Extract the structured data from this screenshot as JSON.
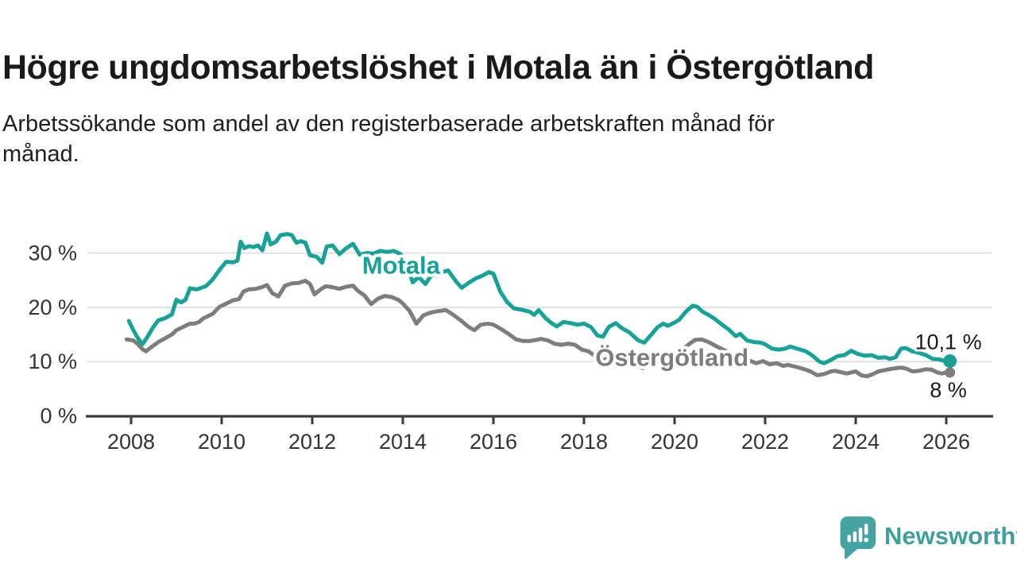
{
  "header": {
    "title": "Högre ungdomsarbetslöshet i Motala än i Östergötland",
    "subtitle_lines": [
      "Arbetssökande som andel av den registerbaserade arbetskraften månad för",
      "månad."
    ]
  },
  "branding": {
    "logo_text": "Newsworthy",
    "logo_color": "#3f9f9d",
    "logo_icon": "bar-chart-speech-bubble"
  },
  "chart_data": {
    "type": "line",
    "title": "Högre ungdomsarbetslöshet i Motala än i Östergötland",
    "subtitle": "Arbetssökande som andel av den registerbaserade arbetskraften månad för månad.",
    "unit": "%",
    "x_axis": {
      "ticks": [
        2008,
        2010,
        2012,
        2014,
        2016,
        2018,
        2020,
        2022,
        2024,
        2026
      ],
      "range": [
        2007.0,
        2027.0
      ]
    },
    "y_axis": {
      "ticks": [
        {
          "value": 0,
          "label": "0 %"
        },
        {
          "value": 10,
          "label": "10 %"
        },
        {
          "value": 20,
          "label": "20 %"
        },
        {
          "value": 30,
          "label": "30 %"
        }
      ],
      "range": [
        0,
        35
      ],
      "grid": true
    },
    "legend_position": "inline-labels",
    "style": {
      "grid_color": "#dcdcdc",
      "axis_color": "#3b3b3b",
      "axis_text_color": "#333333",
      "value_label_color": "#1a1a1a"
    },
    "series": [
      {
        "id": "ostergotland",
        "name": "Östergötland",
        "color": "#7d7d7d",
        "end_label": "8 %",
        "end_value": 8.0,
        "end_label_position": "below",
        "label_pos": {
          "t": 2018.25,
          "v": 10.8
        },
        "points": [
          [
            2007.9,
            14.1
          ],
          [
            2008.05,
            13.9
          ],
          [
            2008.15,
            13.2
          ],
          [
            2008.25,
            12.3
          ],
          [
            2008.33,
            11.9
          ],
          [
            2008.45,
            12.7
          ],
          [
            2008.6,
            13.6
          ],
          [
            2008.75,
            14.3
          ],
          [
            2008.9,
            15.0
          ],
          [
            2009.0,
            15.8
          ],
          [
            2009.15,
            16.4
          ],
          [
            2009.3,
            17.0
          ],
          [
            2009.4,
            17.0
          ],
          [
            2009.5,
            17.3
          ],
          [
            2009.6,
            18.0
          ],
          [
            2009.8,
            18.8
          ],
          [
            2009.95,
            20.1
          ],
          [
            2010.1,
            20.7
          ],
          [
            2010.25,
            21.3
          ],
          [
            2010.38,
            21.5
          ],
          [
            2010.48,
            22.9
          ],
          [
            2010.6,
            23.3
          ],
          [
            2010.75,
            23.4
          ],
          [
            2010.88,
            23.7
          ],
          [
            2011.0,
            24.1
          ],
          [
            2011.12,
            22.6
          ],
          [
            2011.25,
            22.0
          ],
          [
            2011.4,
            24.0
          ],
          [
            2011.55,
            24.4
          ],
          [
            2011.7,
            24.5
          ],
          [
            2011.85,
            24.9
          ],
          [
            2011.95,
            24.3
          ],
          [
            2012.05,
            22.4
          ],
          [
            2012.2,
            23.4
          ],
          [
            2012.3,
            23.9
          ],
          [
            2012.45,
            23.7
          ],
          [
            2012.6,
            23.4
          ],
          [
            2012.75,
            23.8
          ],
          [
            2012.9,
            24.0
          ],
          [
            2013.0,
            23.1
          ],
          [
            2013.15,
            22.2
          ],
          [
            2013.3,
            20.6
          ],
          [
            2013.45,
            21.6
          ],
          [
            2013.6,
            22.1
          ],
          [
            2013.75,
            21.9
          ],
          [
            2013.9,
            21.4
          ],
          [
            2014.0,
            20.7
          ],
          [
            2014.15,
            19.3
          ],
          [
            2014.3,
            17.0
          ],
          [
            2014.45,
            18.5
          ],
          [
            2014.6,
            19.0
          ],
          [
            2014.78,
            19.3
          ],
          [
            2014.95,
            19.5
          ],
          [
            2015.1,
            18.7
          ],
          [
            2015.28,
            17.6
          ],
          [
            2015.45,
            16.4
          ],
          [
            2015.58,
            15.8
          ],
          [
            2015.72,
            16.8
          ],
          [
            2015.88,
            17.0
          ],
          [
            2016.0,
            16.8
          ],
          [
            2016.15,
            16.1
          ],
          [
            2016.3,
            15.3
          ],
          [
            2016.5,
            14.1
          ],
          [
            2016.65,
            13.8
          ],
          [
            2016.8,
            13.8
          ],
          [
            2016.95,
            14.0
          ],
          [
            2017.05,
            14.2
          ],
          [
            2017.2,
            13.9
          ],
          [
            2017.35,
            13.3
          ],
          [
            2017.5,
            13.1
          ],
          [
            2017.65,
            13.3
          ],
          [
            2017.8,
            13.1
          ],
          [
            2017.95,
            12.2
          ],
          [
            2018.1,
            11.9
          ],
          [
            2018.3,
            10.7
          ],
          [
            2018.45,
            10.3
          ],
          [
            2018.6,
            10.9
          ],
          [
            2018.8,
            11.2
          ],
          [
            2019.0,
            10.7
          ],
          [
            2019.15,
            9.4
          ],
          [
            2019.3,
            8.8
          ],
          [
            2019.5,
            10.2
          ],
          [
            2019.7,
            10.8
          ],
          [
            2019.9,
            11.0
          ],
          [
            2020.1,
            11.6
          ],
          [
            2020.3,
            13.1
          ],
          [
            2020.45,
            14.0
          ],
          [
            2020.6,
            14.1
          ],
          [
            2020.78,
            13.5
          ],
          [
            2020.95,
            12.7
          ],
          [
            2021.1,
            12.1
          ],
          [
            2021.3,
            11.4
          ],
          [
            2021.5,
            10.8
          ],
          [
            2021.65,
            10.2
          ],
          [
            2021.8,
            9.7
          ],
          [
            2021.95,
            10.1
          ],
          [
            2022.1,
            9.5
          ],
          [
            2022.25,
            9.7
          ],
          [
            2022.4,
            9.2
          ],
          [
            2022.5,
            9.4
          ],
          [
            2022.7,
            9.0
          ],
          [
            2022.9,
            8.5
          ],
          [
            2023.0,
            8.2
          ],
          [
            2023.15,
            7.5
          ],
          [
            2023.3,
            7.7
          ],
          [
            2023.45,
            8.2
          ],
          [
            2023.55,
            8.3
          ],
          [
            2023.7,
            8.0
          ],
          [
            2023.8,
            7.8
          ],
          [
            2023.9,
            8.0
          ],
          [
            2024.0,
            8.2
          ],
          [
            2024.12,
            7.5
          ],
          [
            2024.25,
            7.3
          ],
          [
            2024.38,
            7.7
          ],
          [
            2024.5,
            8.2
          ],
          [
            2024.62,
            8.4
          ],
          [
            2024.75,
            8.6
          ],
          [
            2024.9,
            8.8
          ],
          [
            2025.0,
            8.9
          ],
          [
            2025.12,
            8.7
          ],
          [
            2025.25,
            8.2
          ],
          [
            2025.4,
            8.3
          ],
          [
            2025.55,
            8.6
          ],
          [
            2025.68,
            8.5
          ],
          [
            2025.8,
            8.0
          ],
          [
            2025.9,
            7.8
          ],
          [
            2026.0,
            8.0
          ],
          [
            2026.08,
            8.0
          ]
        ]
      },
      {
        "id": "motala",
        "name": "Motala",
        "color": "#16a296",
        "end_label": "10,1 %",
        "end_value": 10.1,
        "end_label_position": "above",
        "label_pos": {
          "t": 2013.1,
          "v": 27.8
        },
        "points": [
          [
            2007.95,
            17.5
          ],
          [
            2008.05,
            15.8
          ],
          [
            2008.15,
            14.3
          ],
          [
            2008.25,
            13.2
          ],
          [
            2008.35,
            14.4
          ],
          [
            2008.5,
            16.5
          ],
          [
            2008.6,
            17.6
          ],
          [
            2008.75,
            18.0
          ],
          [
            2008.9,
            18.7
          ],
          [
            2009.0,
            21.4
          ],
          [
            2009.1,
            20.9
          ],
          [
            2009.2,
            21.4
          ],
          [
            2009.3,
            23.5
          ],
          [
            2009.45,
            23.3
          ],
          [
            2009.55,
            23.6
          ],
          [
            2009.65,
            23.9
          ],
          [
            2009.8,
            25.1
          ],
          [
            2009.9,
            26.3
          ],
          [
            2010.0,
            27.4
          ],
          [
            2010.1,
            28.4
          ],
          [
            2010.25,
            28.3
          ],
          [
            2010.35,
            28.6
          ],
          [
            2010.42,
            32.1
          ],
          [
            2010.5,
            30.9
          ],
          [
            2010.6,
            31.3
          ],
          [
            2010.7,
            31.1
          ],
          [
            2010.8,
            31.4
          ],
          [
            2010.9,
            30.5
          ],
          [
            2011.0,
            33.6
          ],
          [
            2011.08,
            31.6
          ],
          [
            2011.2,
            32.1
          ],
          [
            2011.3,
            33.3
          ],
          [
            2011.45,
            33.5
          ],
          [
            2011.55,
            33.3
          ],
          [
            2011.65,
            31.9
          ],
          [
            2011.75,
            32.2
          ],
          [
            2011.85,
            31.9
          ],
          [
            2011.95,
            29.6
          ],
          [
            2012.1,
            29.3
          ],
          [
            2012.22,
            28.2
          ],
          [
            2012.32,
            31.2
          ],
          [
            2012.45,
            31.4
          ],
          [
            2012.6,
            29.8
          ],
          [
            2012.75,
            30.9
          ],
          [
            2012.9,
            31.7
          ],
          [
            2013.05,
            29.7
          ],
          [
            2013.2,
            30.0
          ],
          [
            2013.35,
            29.9
          ],
          [
            2013.5,
            30.4
          ],
          [
            2013.65,
            30.2
          ],
          [
            2013.8,
            30.4
          ],
          [
            2013.95,
            29.8
          ],
          [
            2014.1,
            27.5
          ],
          [
            2014.22,
            24.6
          ],
          [
            2014.35,
            25.6
          ],
          [
            2014.5,
            24.3
          ],
          [
            2014.62,
            25.8
          ],
          [
            2014.8,
            26.3
          ],
          [
            2015.0,
            26.8
          ],
          [
            2015.18,
            24.7
          ],
          [
            2015.3,
            23.6
          ],
          [
            2015.45,
            24.5
          ],
          [
            2015.6,
            25.3
          ],
          [
            2015.75,
            25.8
          ],
          [
            2015.9,
            26.5
          ],
          [
            2016.0,
            26.2
          ],
          [
            2016.15,
            22.9
          ],
          [
            2016.3,
            21.0
          ],
          [
            2016.45,
            19.8
          ],
          [
            2016.6,
            19.6
          ],
          [
            2016.8,
            19.2
          ],
          [
            2016.9,
            18.6
          ],
          [
            2017.0,
            19.5
          ],
          [
            2017.15,
            18.0
          ],
          [
            2017.3,
            17.0
          ],
          [
            2017.4,
            16.5
          ],
          [
            2017.55,
            17.3
          ],
          [
            2017.7,
            17.1
          ],
          [
            2017.85,
            16.8
          ],
          [
            2018.0,
            17.0
          ],
          [
            2018.15,
            16.4
          ],
          [
            2018.3,
            14.8
          ],
          [
            2018.42,
            14.6
          ],
          [
            2018.55,
            16.4
          ],
          [
            2018.7,
            17.1
          ],
          [
            2018.85,
            16.1
          ],
          [
            2019.0,
            15.4
          ],
          [
            2019.2,
            13.9
          ],
          [
            2019.33,
            13.5
          ],
          [
            2019.5,
            15.1
          ],
          [
            2019.62,
            16.3
          ],
          [
            2019.75,
            17.0
          ],
          [
            2019.85,
            16.6
          ],
          [
            2020.0,
            17.2
          ],
          [
            2020.1,
            17.7
          ],
          [
            2020.25,
            19.2
          ],
          [
            2020.4,
            20.3
          ],
          [
            2020.5,
            20.1
          ],
          [
            2020.62,
            19.2
          ],
          [
            2020.75,
            18.6
          ],
          [
            2020.9,
            17.8
          ],
          [
            2021.05,
            16.8
          ],
          [
            2021.2,
            15.9
          ],
          [
            2021.35,
            14.7
          ],
          [
            2021.45,
            15.1
          ],
          [
            2021.6,
            13.9
          ],
          [
            2021.75,
            13.6
          ],
          [
            2021.9,
            13.5
          ],
          [
            2022.0,
            13.2
          ],
          [
            2022.15,
            12.4
          ],
          [
            2022.3,
            12.2
          ],
          [
            2022.45,
            12.4
          ],
          [
            2022.55,
            12.8
          ],
          [
            2022.7,
            12.4
          ],
          [
            2022.9,
            11.9
          ],
          [
            2023.05,
            11.1
          ],
          [
            2023.2,
            10.0
          ],
          [
            2023.3,
            9.7
          ],
          [
            2023.45,
            10.3
          ],
          [
            2023.6,
            11.0
          ],
          [
            2023.75,
            11.2
          ],
          [
            2023.9,
            12.0
          ],
          [
            2024.05,
            11.4
          ],
          [
            2024.2,
            11.1
          ],
          [
            2024.35,
            11.2
          ],
          [
            2024.5,
            10.7
          ],
          [
            2024.65,
            10.8
          ],
          [
            2024.75,
            10.5
          ],
          [
            2024.88,
            10.8
          ],
          [
            2025.0,
            12.4
          ],
          [
            2025.1,
            12.5
          ],
          [
            2025.25,
            11.9
          ],
          [
            2025.4,
            11.6
          ],
          [
            2025.55,
            11.2
          ],
          [
            2025.7,
            10.5
          ],
          [
            2025.85,
            10.4
          ],
          [
            2026.0,
            10.0
          ],
          [
            2026.08,
            10.1
          ]
        ]
      }
    ]
  }
}
